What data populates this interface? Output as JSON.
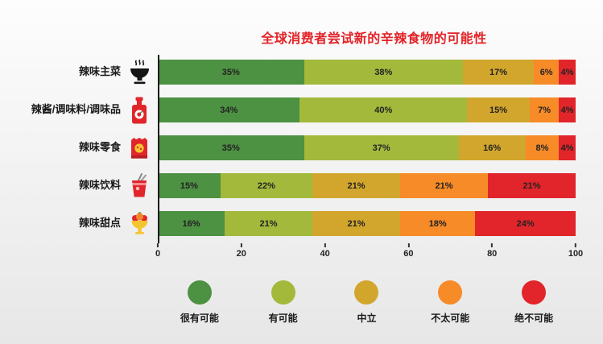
{
  "chart_data": {
    "type": "bar",
    "stacked": true,
    "orientation": "horizontal",
    "title": "全球消费者尝试新的辛辣食物的可能性",
    "title_color": "#e32227",
    "xlim": [
      0,
      100
    ],
    "x_ticks": [
      0,
      20,
      40,
      60,
      80,
      100
    ],
    "value_suffix": "%",
    "grid": false,
    "legend_position": "bottom",
    "categories": [
      "辣味主菜",
      "辣酱/调味料/调味品",
      "辣味零食",
      "辣味饮料",
      "辣味甜点"
    ],
    "category_icons": [
      "noodle-bowl-icon",
      "sauce-bottle-icon",
      "snack-bag-icon",
      "spicy-drink-icon",
      "sundae-icon"
    ],
    "series": [
      {
        "name": "很有可能",
        "color": "#4d9142",
        "values": [
          35,
          34,
          35,
          15,
          16
        ]
      },
      {
        "name": "有可能",
        "color": "#a2b93b",
        "values": [
          38,
          40,
          37,
          22,
          21
        ]
      },
      {
        "name": "中立",
        "color": "#d2a62c",
        "values": [
          17,
          15,
          16,
          21,
          21
        ]
      },
      {
        "name": "不太可能",
        "color": "#f68b28",
        "values": [
          6,
          7,
          8,
          21,
          18
        ]
      },
      {
        "name": "绝不可能",
        "color": "#e1252b",
        "values": [
          4,
          4,
          4,
          21,
          24
        ]
      }
    ]
  }
}
